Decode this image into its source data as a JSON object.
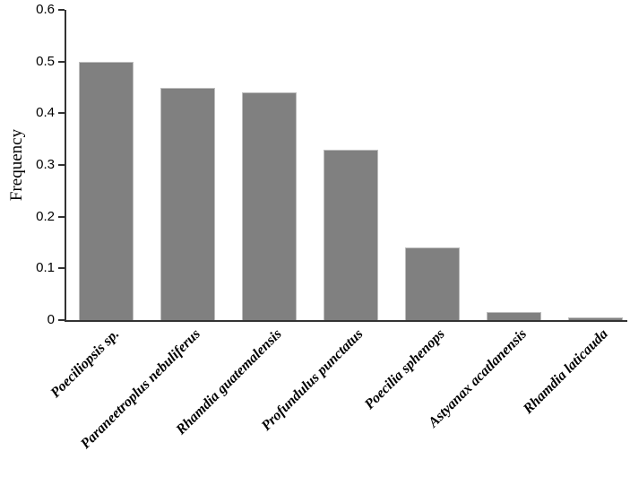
{
  "chart_data": {
    "type": "bar",
    "title": "",
    "xlabel": "",
    "ylabel": "Frequency",
    "categories": [
      "Poeciliopsis sp.",
      "Paraneetroplus nebuliferus",
      "Rhamdia guatemalensis",
      "Profundulus punctatus",
      "Poecilia sphenops",
      "Astyanax acatlanensis",
      "Rhamdia laticauda"
    ],
    "values": [
      0.5,
      0.45,
      0.44,
      0.33,
      0.14,
      0.015,
      0.005
    ],
    "ylim": [
      0,
      0.6
    ],
    "yticks": [
      0,
      0.1,
      0.2,
      0.3,
      0.4,
      0.5,
      0.6
    ],
    "ytick_labels": [
      "0",
      "0.1",
      "0.2",
      "0.3",
      "0.4",
      "0.5",
      "0.6"
    ],
    "grid": false,
    "legend": "none",
    "bar_color": "#808080",
    "bar_border_color": "#bdbdbd",
    "axis_color": "#333333",
    "text_color": "#000000"
  }
}
